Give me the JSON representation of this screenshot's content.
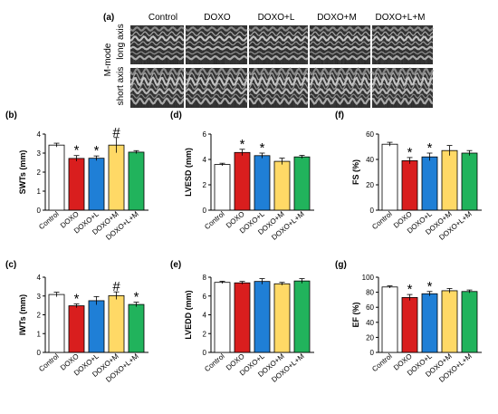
{
  "panel_a": {
    "label": "(a)",
    "columns": [
      "Control",
      "DOXO",
      "DOXO+L",
      "DOXO+M",
      "DOXO+L+M"
    ],
    "mode_label": "M-mode",
    "row_labels": [
      "long axis",
      "short axis"
    ]
  },
  "colors": {
    "Control": "#ffffff",
    "DOXO": "#d91e1e",
    "DOXO+L": "#1f7fd6",
    "DOXO+M": "#ffd966",
    "DOXO+L+M": "#21b35c"
  },
  "chart_data": [
    {
      "id": "b",
      "label": "(b)",
      "type": "bar",
      "categories": [
        "Control",
        "DOXO",
        "DOXO+L",
        "DOXO+M",
        "DOXO+L+M"
      ],
      "values": [
        3.42,
        2.72,
        2.73,
        3.42,
        3.05
      ],
      "errors": [
        0.1,
        0.15,
        0.12,
        0.4,
        0.08
      ],
      "annotations": [
        "",
        "*",
        "*",
        "#",
        ""
      ],
      "ylabel": "SWTs (mm)",
      "ylim": [
        0,
        4
      ],
      "yticks": [
        0,
        1,
        2,
        3,
        4
      ]
    },
    {
      "id": "d",
      "label": "(d)",
      "type": "bar",
      "categories": [
        "Control",
        "DOXO",
        "DOXO+L",
        "DOXO+M",
        "DOXO+L+M"
      ],
      "values": [
        3.6,
        4.55,
        4.3,
        3.85,
        4.2
      ],
      "errors": [
        0.1,
        0.25,
        0.2,
        0.25,
        0.12
      ],
      "annotations": [
        "",
        "*",
        "*",
        "",
        ""
      ],
      "ylabel": "LVESD (mm)",
      "ylim": [
        0,
        6
      ],
      "yticks": [
        0,
        2,
        4,
        6
      ]
    },
    {
      "id": "f",
      "label": "(f)",
      "type": "bar",
      "categories": [
        "Control",
        "DOXO",
        "DOXO+L",
        "DOXO+M",
        "DOXO+L+M"
      ],
      "values": [
        52,
        39,
        42,
        47,
        45
      ],
      "errors": [
        1.5,
        2.5,
        3,
        4,
        2
      ],
      "annotations": [
        "",
        "*",
        "*",
        "",
        ""
      ],
      "ylabel": "FS (%)",
      "ylim": [
        0,
        60
      ],
      "yticks": [
        0,
        20,
        40,
        60
      ]
    },
    {
      "id": "c",
      "label": "(c)",
      "type": "bar",
      "categories": [
        "Control",
        "DOXO",
        "DOXO+L",
        "DOXO+M",
        "DOXO+L+M"
      ],
      "values": [
        3.08,
        2.48,
        2.75,
        3.02,
        2.55
      ],
      "errors": [
        0.12,
        0.1,
        0.22,
        0.2,
        0.12
      ],
      "annotations": [
        "",
        "*",
        "",
        "#",
        "*"
      ],
      "ylabel": "IWTs (mm)",
      "ylim": [
        0,
        4
      ],
      "yticks": [
        0,
        1,
        2,
        3,
        4
      ]
    },
    {
      "id": "e",
      "label": "(e)",
      "type": "bar",
      "categories": [
        "Control",
        "DOXO",
        "DOXO+L",
        "DOXO+M",
        "DOXO+L+M"
      ],
      "values": [
        7.45,
        7.4,
        7.55,
        7.3,
        7.6
      ],
      "errors": [
        0.12,
        0.15,
        0.3,
        0.15,
        0.25
      ],
      "annotations": [
        "",
        "",
        "",
        "",
        ""
      ],
      "ylabel": "LVEDD (mm)",
      "ylim": [
        0,
        8
      ],
      "yticks": [
        0,
        2,
        4,
        6,
        8
      ]
    },
    {
      "id": "g",
      "label": "(g)",
      "type": "bar",
      "categories": [
        "Control",
        "DOXO",
        "DOXO+L",
        "DOXO+M",
        "DOXO+L+M"
      ],
      "values": [
        87,
        73,
        78,
        82,
        81
      ],
      "errors": [
        1.5,
        4,
        3,
        3,
        2
      ],
      "annotations": [
        "",
        "*",
        "*",
        "",
        ""
      ],
      "ylabel": "EF (%)",
      "ylim": [
        0,
        100
      ],
      "yticks": [
        0,
        20,
        40,
        60,
        80,
        100
      ]
    }
  ]
}
